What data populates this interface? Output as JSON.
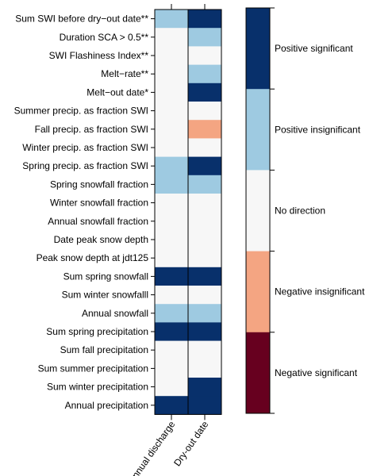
{
  "chart_data": {
    "type": "heatmap",
    "title": "",
    "xlabel": "",
    "ylabel": "",
    "columns": [
      "Annual discharge",
      "Dry-out date"
    ],
    "rows": [
      "Sum SWI before dry−out date**",
      "Duration SCA > 0.5**",
      "SWI Flashiness Index**",
      "Melt−rate**",
      "Melt−out date*",
      "Summer precip. as fraction SWI",
      "Fall precip. as fraction SWI",
      "Winter precip. as fraction SWI",
      "Spring precip. as fraction SWI",
      "Spring snowfall fraction",
      "Winter snowfall fraction",
      "Annual snowfall fraction",
      "Date peak snow depth",
      "Peak snow depth at jdt125",
      "Sum spring snowfall",
      "Sum winter snowfalll",
      "Annual snowfall",
      "Sum spring precipitation",
      "Sum fall precipitation",
      "Sum summer precipitation",
      "Sum winter precipitation",
      "Annual precipitation"
    ],
    "values": [
      [
        1,
        2
      ],
      [
        0,
        1
      ],
      [
        0,
        0
      ],
      [
        0,
        1
      ],
      [
        0,
        2
      ],
      [
        0,
        0
      ],
      [
        0,
        -1
      ],
      [
        0,
        0
      ],
      [
        1,
        2
      ],
      [
        1,
        1
      ],
      [
        0,
        0
      ],
      [
        0,
        0
      ],
      [
        0,
        0
      ],
      [
        0,
        0
      ],
      [
        2,
        2
      ],
      [
        0,
        0
      ],
      [
        1,
        1
      ],
      [
        2,
        2
      ],
      [
        0,
        0
      ],
      [
        0,
        0
      ],
      [
        0,
        2
      ],
      [
        2,
        2
      ]
    ],
    "legend": {
      "position": "right",
      "categories": [
        {
          "value": 2,
          "label": "Positive significant",
          "color": "#08306b"
        },
        {
          "value": 1,
          "label": "Positive insignificant",
          "color": "#9ecae1"
        },
        {
          "value": 0,
          "label": "No direction",
          "color": "#f7f7f7"
        },
        {
          "value": -1,
          "label": "Negative insignificant",
          "color": "#f4a582"
        },
        {
          "value": -2,
          "label": "Negative significant",
          "color": "#67001f"
        }
      ]
    }
  }
}
